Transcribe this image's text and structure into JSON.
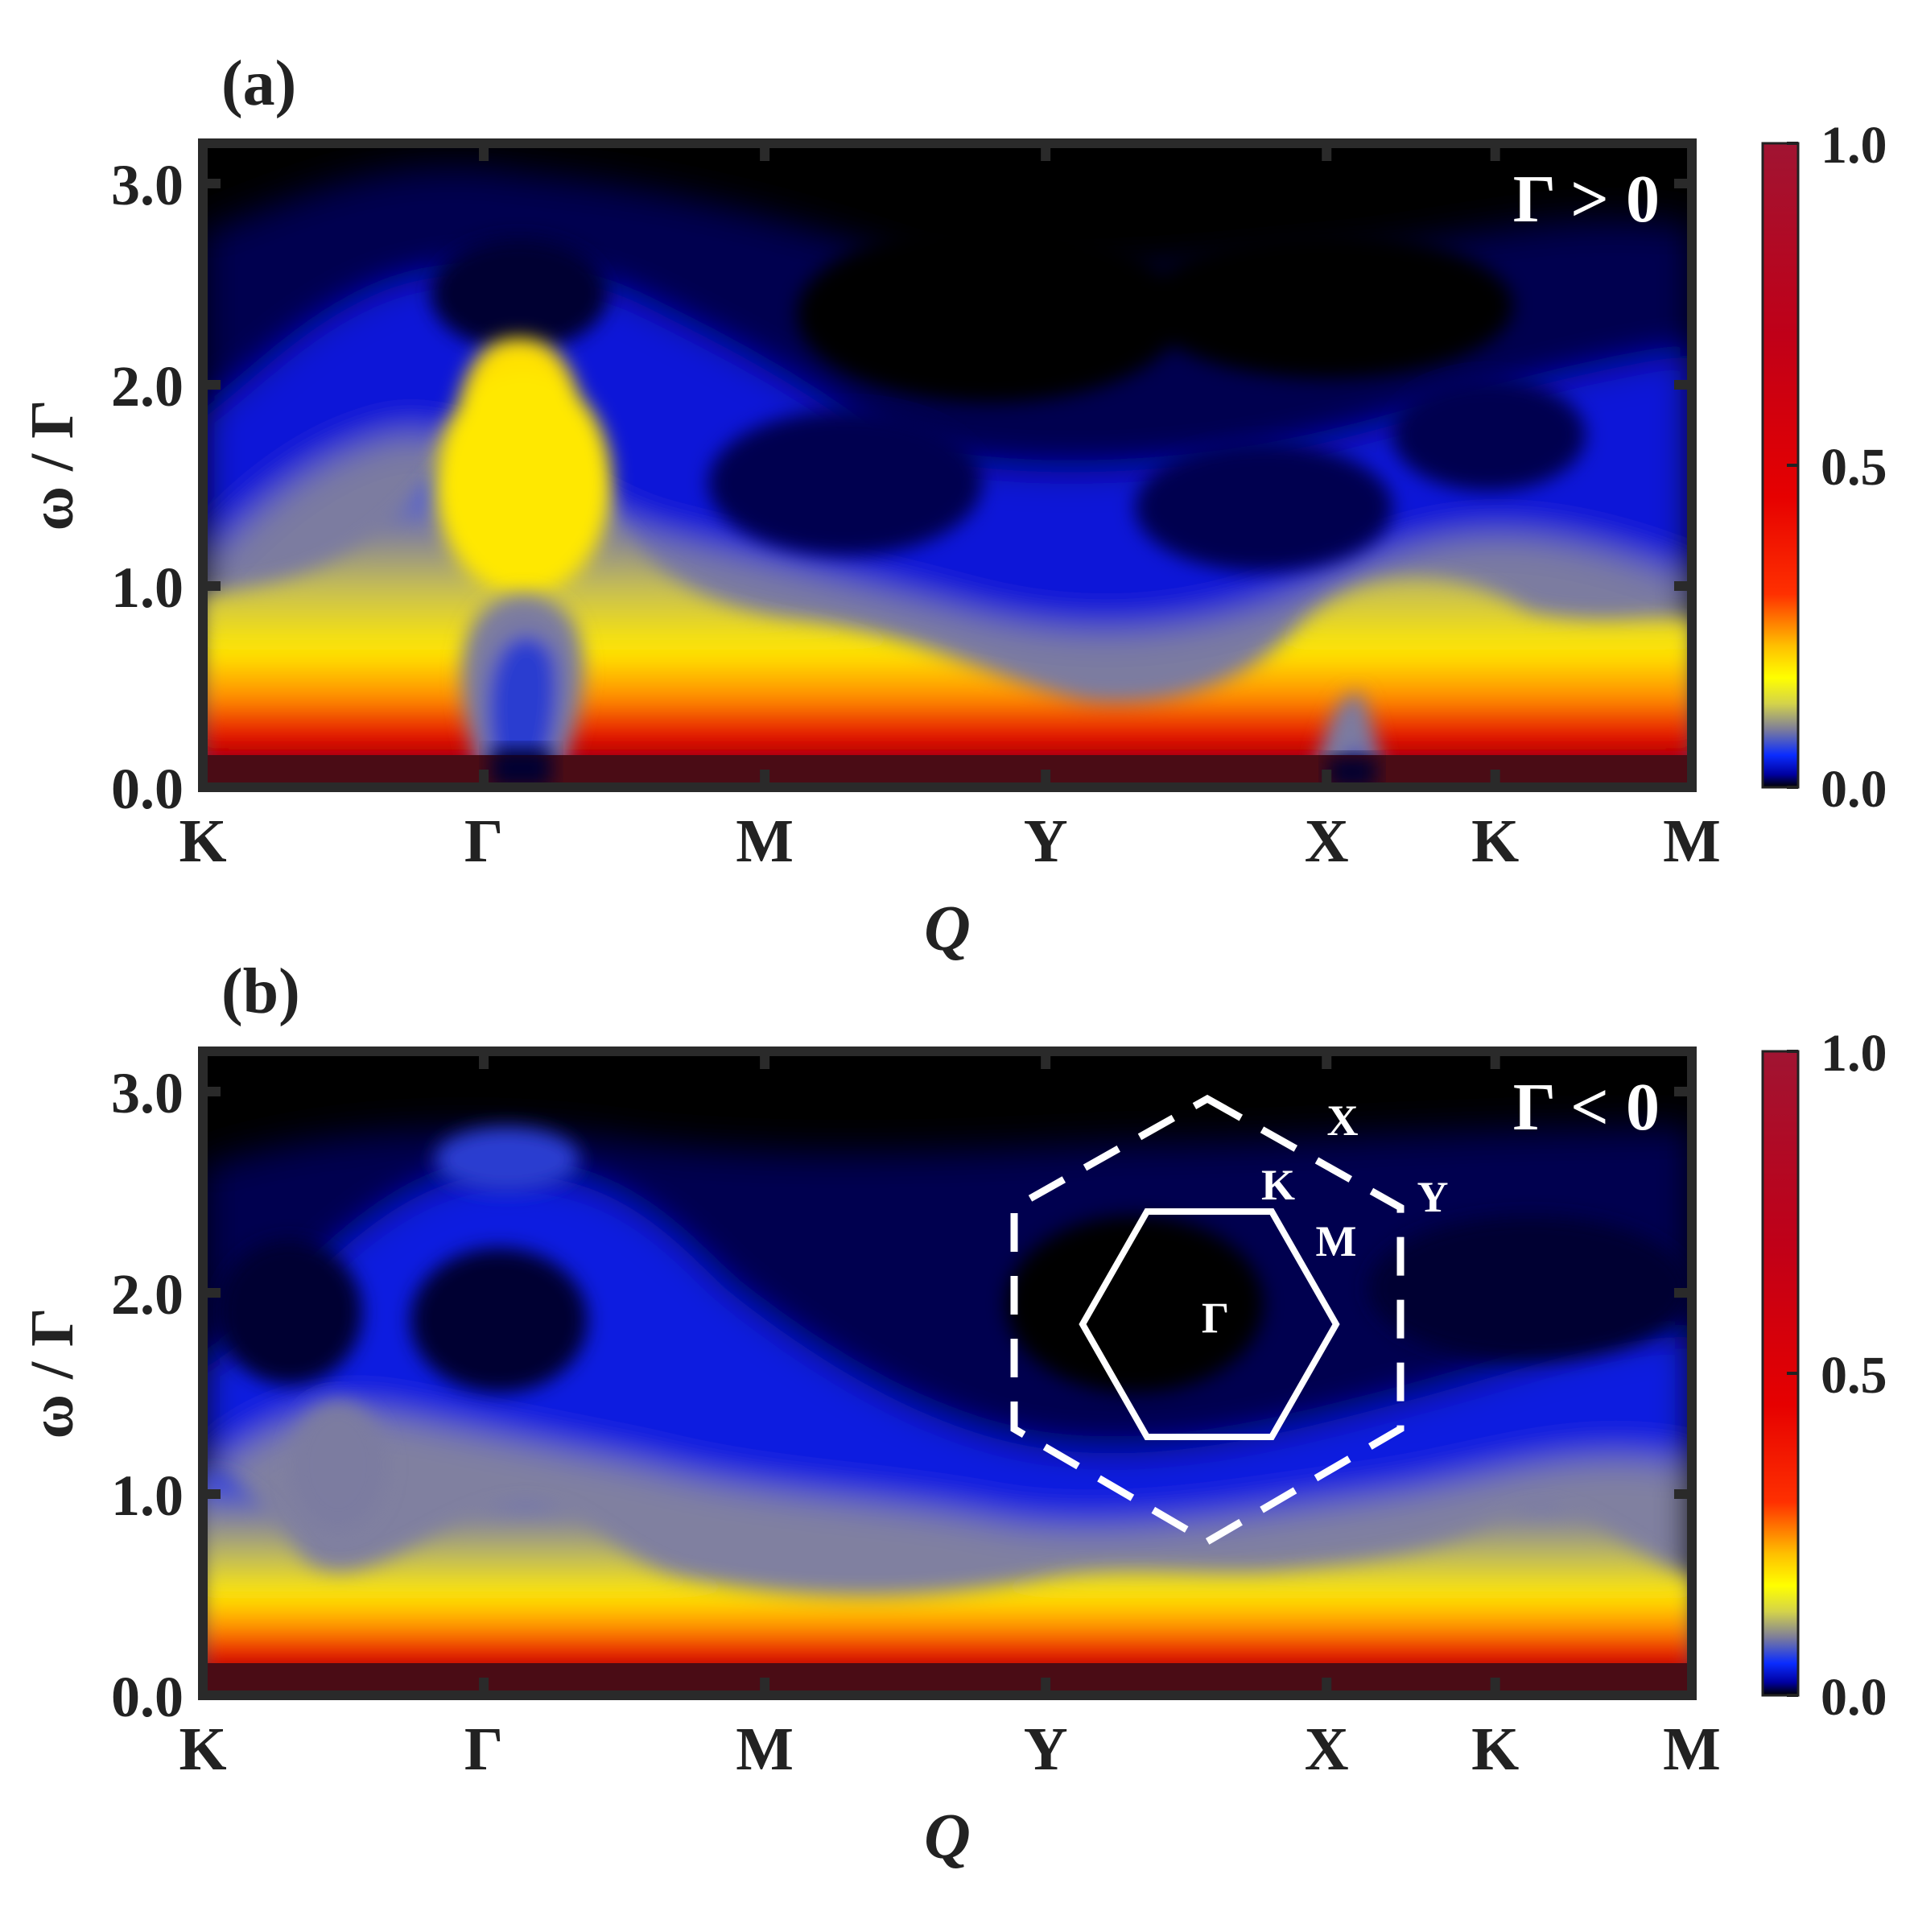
{
  "chart_data": [
    {
      "type": "heatmap",
      "panel_label": "(a)",
      "annotation": "Γ > 0",
      "xlabel": "Q",
      "ylabel": "ω / Γ",
      "x_tick_labels": [
        "K",
        "Γ",
        "M",
        "Y",
        "X",
        "K",
        "M"
      ],
      "x_tick_positions": [
        0,
        1,
        2,
        3,
        4,
        4.6,
        5.3
      ],
      "xlim": [
        0,
        5.3
      ],
      "ylim": [
        0,
        3.2
      ],
      "y_ticks": [
        0.0,
        1.0,
        2.0,
        3.0
      ],
      "y_tick_labels": [
        "0.0",
        "1.0",
        "2.0",
        "3.0"
      ],
      "colorbar": {
        "range": [
          0.0,
          1.0
        ],
        "tick_labels": [
          "0.0",
          "0.5",
          "1.0"
        ],
        "ticks": [
          0.0,
          0.5,
          1.0
        ]
      },
      "lower_edge_profile": {
        "q": [
          0,
          0.5,
          0.95,
          1.0,
          1.05,
          1.5,
          2.0,
          2.5,
          3.0,
          3.5,
          4.0,
          4.3,
          4.6,
          5.0,
          5.3
        ],
        "omega": [
          0.75,
          0.55,
          0.05,
          0.0,
          0.05,
          0.6,
          0.75,
          0.7,
          0.5,
          0.55,
          0.05,
          0.55,
          0.75,
          0.8,
          0.85
        ]
      }
    },
    {
      "type": "heatmap",
      "panel_label": "(b)",
      "annotation": "Γ < 0",
      "xlabel": "Q",
      "ylabel": "ω / Γ",
      "x_tick_labels": [
        "K",
        "Γ",
        "M",
        "Y",
        "X",
        "K",
        "M"
      ],
      "x_tick_positions": [
        0,
        1,
        2,
        3,
        4,
        4.6,
        5.3
      ],
      "xlim": [
        0,
        5.3
      ],
      "ylim": [
        0,
        3.2
      ],
      "y_ticks": [
        0.0,
        1.0,
        2.0,
        3.0
      ],
      "y_tick_labels": [
        "0.0",
        "1.0",
        "2.0",
        "3.0"
      ],
      "colorbar": {
        "range": [
          0.0,
          1.0
        ],
        "tick_labels": [
          "0.0",
          "0.5",
          "1.0"
        ],
        "ticks": [
          0.0,
          0.5,
          1.0
        ]
      },
      "lower_edge_profile": {
        "q": [
          0,
          0.5,
          1.0,
          1.5,
          2.0,
          2.5,
          3.0,
          3.5,
          4.0,
          4.3,
          4.6,
          5.0,
          5.3
        ],
        "omega": [
          0.9,
          0.5,
          0.7,
          0.45,
          0.35,
          0.35,
          0.45,
          0.4,
          0.45,
          0.5,
          0.75,
          0.5,
          0.35
        ]
      },
      "inset": {
        "type": "brillouin-zone",
        "labels": {
          "gamma": "Γ",
          "m": "M",
          "k": "K",
          "x": "X",
          "y": "Y"
        }
      }
    }
  ]
}
